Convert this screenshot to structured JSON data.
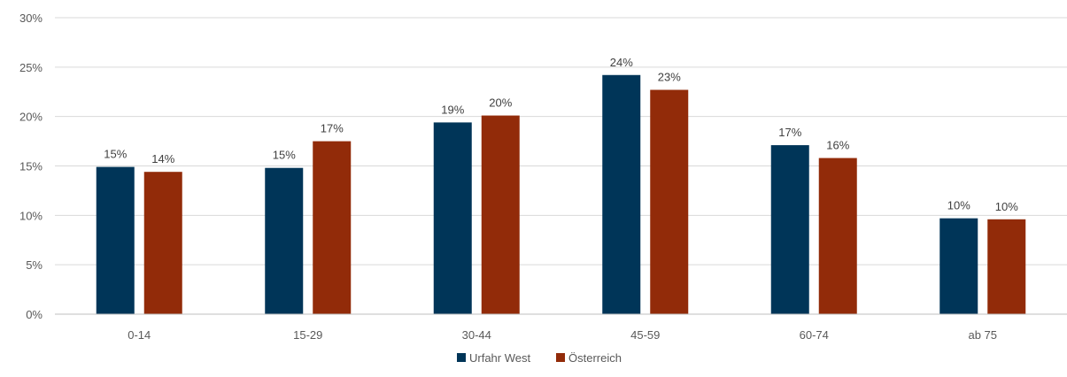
{
  "chart_data": {
    "type": "bar",
    "categories": [
      "0-14",
      "15-29",
      "30-44",
      "45-59",
      "60-74",
      "ab 75"
    ],
    "series": [
      {
        "name": "Urfahr West",
        "values": [
          14.9,
          14.8,
          19.4,
          24.2,
          17.1,
          9.7
        ],
        "labels": [
          "15%",
          "15%",
          "19%",
          "24%",
          "17%",
          "10%"
        ]
      },
      {
        "name": "Österreich",
        "values": [
          14.4,
          17.5,
          20.1,
          22.7,
          15.8,
          9.6
        ],
        "labels": [
          "14%",
          "17%",
          "20%",
          "23%",
          "16%",
          "10%"
        ]
      }
    ],
    "colors": [
      "#003558",
      "#922b09"
    ],
    "yticks": [
      "0%",
      "5%",
      "10%",
      "15%",
      "20%",
      "25%",
      "30%"
    ],
    "ylim": [
      0,
      30
    ],
    "grid": true,
    "legend_position": "bottom-center"
  }
}
